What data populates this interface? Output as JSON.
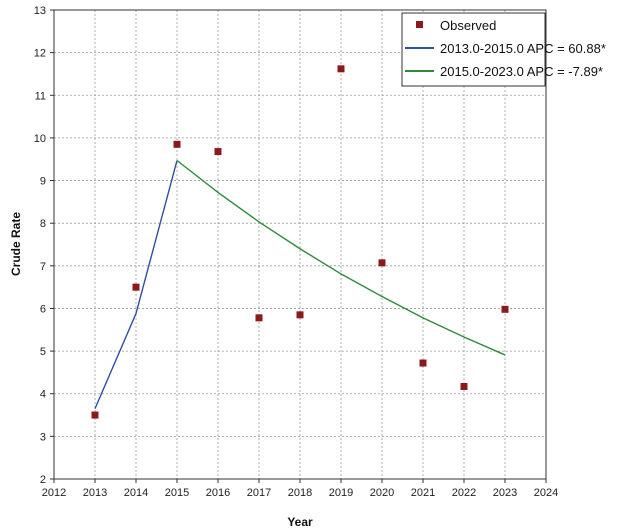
{
  "chart_data": {
    "type": "line",
    "xlabel": "Year",
    "ylabel": "Crude Rate",
    "xlim": [
      2012,
      2024
    ],
    "ylim": [
      2,
      13
    ],
    "x_ticks": [
      2012,
      2013,
      2014,
      2015,
      2016,
      2017,
      2018,
      2019,
      2020,
      2021,
      2022,
      2023,
      2024
    ],
    "y_ticks": [
      2,
      3,
      4,
      5,
      6,
      7,
      8,
      9,
      10,
      11,
      12,
      13
    ],
    "grid": true,
    "legend_position": "top-right",
    "observed": {
      "name": "Observed",
      "color": "#8b1a1a",
      "x": [
        2013,
        2014,
        2015,
        2016,
        2017,
        2018,
        2019,
        2020,
        2021,
        2022,
        2023
      ],
      "y": [
        3.5,
        6.5,
        9.85,
        9.68,
        5.78,
        5.85,
        11.62,
        7.07,
        4.72,
        4.17,
        5.98
      ]
    },
    "series": [
      {
        "name": "2013.0-2015.0 APC  =  60.88*",
        "color": "#2e4ea3",
        "x": [
          2013,
          2014,
          2015
        ],
        "y": [
          3.65,
          5.88,
          9.47
        ]
      },
      {
        "name": "2015.0-2023.0 APC  =  -7.89*",
        "color": "#2e8b3a",
        "x": [
          2015,
          2016,
          2017,
          2018,
          2019,
          2020,
          2021,
          2022,
          2023
        ],
        "y": [
          9.47,
          8.72,
          8.03,
          7.4,
          6.81,
          6.28,
          5.78,
          5.33,
          4.91
        ]
      }
    ]
  }
}
